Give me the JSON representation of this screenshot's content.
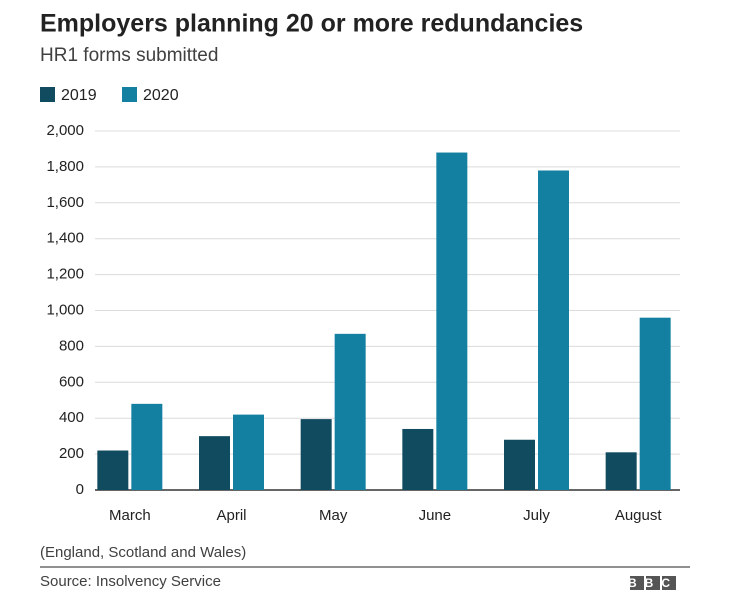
{
  "chart_data": {
    "type": "bar",
    "title": "Employers planning 20 or more redundancies",
    "subtitle": "HR1 forms submitted",
    "categories": [
      "March",
      "April",
      "May",
      "June",
      "July",
      "August"
    ],
    "series": [
      {
        "name": "2019",
        "color": "#114b5f",
        "values": [
          220,
          300,
          395,
          340,
          280,
          210
        ]
      },
      {
        "name": "2020",
        "color": "#1380a1",
        "values": [
          480,
          420,
          870,
          1880,
          1780,
          960
        ]
      }
    ],
    "ylim": [
      0,
      2000
    ],
    "yticks": [
      0,
      200,
      400,
      600,
      800,
      {
        "value": 1000,
        "label": "1,000"
      },
      {
        "value": 1200,
        "label": "1,200"
      },
      {
        "value": 1400,
        "label": "1,400"
      },
      {
        "value": 1600,
        "label": "1,600"
      },
      {
        "value": 1800,
        "label": "1,800"
      },
      {
        "value": 2000,
        "label": "2,000"
      }
    ],
    "grid": true,
    "note": "(England, Scotland and Wales)",
    "source": "Source: Insolvency Service",
    "logo": "BBC"
  }
}
